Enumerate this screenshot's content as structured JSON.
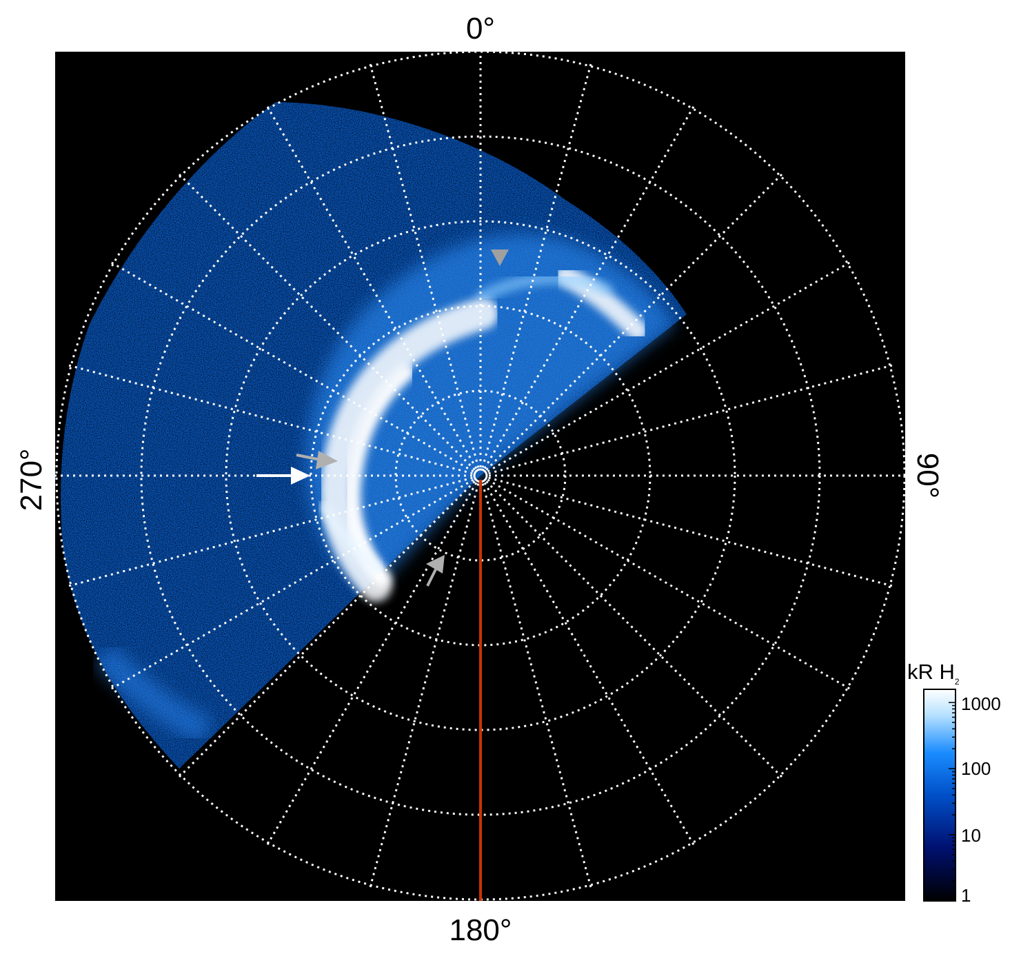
{
  "angle_labels": {
    "top": "0°",
    "right": "90°",
    "bottom": "180°",
    "left": "270°"
  },
  "colorbar": {
    "title_main": "kR H",
    "title_sub": "2",
    "ticks": [
      "1000",
      "100",
      "10",
      "1"
    ],
    "colors": [
      "#ffffff",
      "#a8dcff",
      "#1a8cff",
      "#0050c8",
      "#000a60",
      "#000000"
    ]
  },
  "plot": {
    "background": "#000000",
    "aurora_colors": [
      "#ffffff",
      "#cdeaff",
      "#3aa0ff",
      "#0a64d8",
      "#062a80"
    ],
    "meridian_color": "#cc3300",
    "grid_color": "#ffffff"
  },
  "annotations": {
    "arrows": [
      {
        "name": "white-arrow-left",
        "color": "#ffffff"
      },
      {
        "name": "gray-arrow-left-upper",
        "color": "#b0b0b0"
      },
      {
        "name": "gray-arrow-top",
        "color": "#a0a0a0"
      },
      {
        "name": "gray-arrow-lower",
        "color": "#b0b0b0"
      }
    ]
  }
}
